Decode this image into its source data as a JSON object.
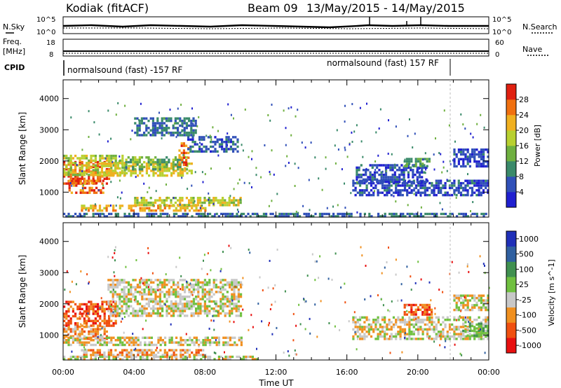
{
  "header": {
    "site": "Kodiak (fitACF)",
    "beam": "Beam 09",
    "dates": "13/May/2015 - 14/May/2015"
  },
  "sky_panel": {
    "left_label": "N.Sky",
    "right_label": "N.Search",
    "left_ticks": [
      "10^5",
      "10^0"
    ],
    "right_ticks": [
      "10^5",
      "10^0"
    ]
  },
  "freq_panel": {
    "left_label_1": "Freq.",
    "left_label_2": "[MHz]",
    "right_label": "Nave",
    "left_ticks": [
      "18",
      "8"
    ],
    "right_ticks": [
      "60",
      "0"
    ]
  },
  "cpid": {
    "label": "CPID",
    "segment_1": "normalsound (fast) -157 RF",
    "segment_2": "normalsound (fast) 157 RF"
  },
  "colors": {
    "power": [
      "#2020d0",
      "#3050b8",
      "#3a8a6a",
      "#6fb040",
      "#b8d030",
      "#f0b020",
      "#f07010",
      "#e02010"
    ],
    "velocity": [
      "#e81010",
      "#f05010",
      "#f09020",
      "#c8c8c8",
      "#70c040",
      "#409050",
      "#3060a0",
      "#2030b8"
    ]
  },
  "chart_data": [
    {
      "type": "heatmap",
      "name": "power",
      "xlabel": "",
      "ylabel": "Slant Range [km]",
      "x_range_hours": [
        0,
        24
      ],
      "ylim": [
        200,
        4600
      ],
      "y_ticks": [
        1000,
        2000,
        3000,
        4000
      ],
      "y_tick_labels": [
        "1000",
        "2000",
        "3000",
        "4000"
      ],
      "colorbar": {
        "label": "Power [dB]",
        "range": [
          0,
          32
        ],
        "ticks": [
          4,
          8,
          12,
          16,
          20,
          24,
          28
        ],
        "tick_labels": [
          "4",
          "8",
          "12",
          "16",
          "20",
          "24",
          "28"
        ]
      },
      "bands": [
        {
          "t0": 0.0,
          "t1": 2.6,
          "r0": 1300,
          "r1": 2000,
          "level": 28
        },
        {
          "t0": 0.3,
          "t1": 2.2,
          "r0": 950,
          "r1": 1400,
          "level": 26
        },
        {
          "t0": 0.0,
          "t1": 3.5,
          "r0": 1550,
          "r1": 2200,
          "level": 18
        },
        {
          "t0": 2.0,
          "t1": 7.2,
          "r0": 1550,
          "r1": 1950,
          "level": 20
        },
        {
          "t0": 3.5,
          "t1": 7.0,
          "r0": 1750,
          "r1": 2150,
          "level": 14
        },
        {
          "t0": 6.5,
          "t1": 7.1,
          "r0": 1850,
          "r1": 2600,
          "level": 26
        },
        {
          "t0": 7.0,
          "t1": 9.8,
          "r0": 2300,
          "r1": 2800,
          "level": 6
        },
        {
          "t0": 4.0,
          "t1": 7.5,
          "r0": 2800,
          "r1": 3400,
          "level": 8
        },
        {
          "t0": 1.0,
          "t1": 8.0,
          "r0": 400,
          "r1": 600,
          "level": 22
        },
        {
          "t0": 4.0,
          "t1": 10.0,
          "r0": 600,
          "r1": 850,
          "level": 18
        },
        {
          "t0": 0.0,
          "t1": 24.0,
          "r0": 220,
          "r1": 340,
          "level": 8
        },
        {
          "t0": 16.3,
          "t1": 24.0,
          "r0": 900,
          "r1": 1400,
          "level": 5
        },
        {
          "t0": 16.5,
          "t1": 20.5,
          "r0": 1300,
          "r1": 1900,
          "level": 5
        },
        {
          "t0": 19.2,
          "t1": 20.6,
          "r0": 1800,
          "r1": 2100,
          "level": 12
        },
        {
          "t0": 22.0,
          "t1": 24.0,
          "r0": 1800,
          "r1": 2400,
          "level": 5
        }
      ]
    },
    {
      "type": "heatmap",
      "name": "velocity",
      "xlabel": "Time UT",
      "ylabel": "Slant Range [km]",
      "x_range_hours": [
        0,
        24
      ],
      "ylim": [
        200,
        4600
      ],
      "y_ticks": [
        1000,
        2000,
        3000,
        4000
      ],
      "y_tick_labels": [
        "1000",
        "2000",
        "3000",
        "4000"
      ],
      "x_ticks": [
        0,
        4,
        8,
        12,
        16,
        20,
        24
      ],
      "x_tick_labels": [
        "00:00",
        "04:00",
        "08:00",
        "12:00",
        "16:00",
        "20:00",
        "00:00"
      ],
      "colorbar": {
        "label": "Velocity [m s^-1]",
        "tick_labels": [
          "1000",
          "500",
          "100",
          "25",
          "-25",
          "-100",
          "-500",
          "-1000"
        ]
      },
      "bands": [
        {
          "t0": 0.0,
          "t1": 3.0,
          "r0": 1300,
          "r1": 2100,
          "level": 1
        },
        {
          "t0": 0.0,
          "t1": 2.5,
          "r0": 900,
          "r1": 1300,
          "level": 2
        },
        {
          "t0": 2.5,
          "t1": 10.0,
          "r0": 1600,
          "r1": 2800,
          "level": 3
        },
        {
          "t0": 0.0,
          "t1": 10.0,
          "r0": 700,
          "r1": 950,
          "level": 3
        },
        {
          "t0": 1.0,
          "t1": 8.0,
          "r0": 350,
          "r1": 550,
          "level": 2
        },
        {
          "t0": 0.0,
          "t1": 11.0,
          "r0": 220,
          "r1": 340,
          "level": 3
        },
        {
          "t0": 16.3,
          "t1": 24.0,
          "r0": 900,
          "r1": 1600,
          "level": 3
        },
        {
          "t0": 19.2,
          "t1": 20.8,
          "r0": 1650,
          "r1": 2000,
          "level": 1
        },
        {
          "t0": 22.0,
          "t1": 24.0,
          "r0": 1800,
          "r1": 2300,
          "level": 3
        },
        {
          "t0": 22.5,
          "t1": 24.0,
          "r0": 1000,
          "r1": 1400,
          "level": 4
        }
      ]
    }
  ]
}
